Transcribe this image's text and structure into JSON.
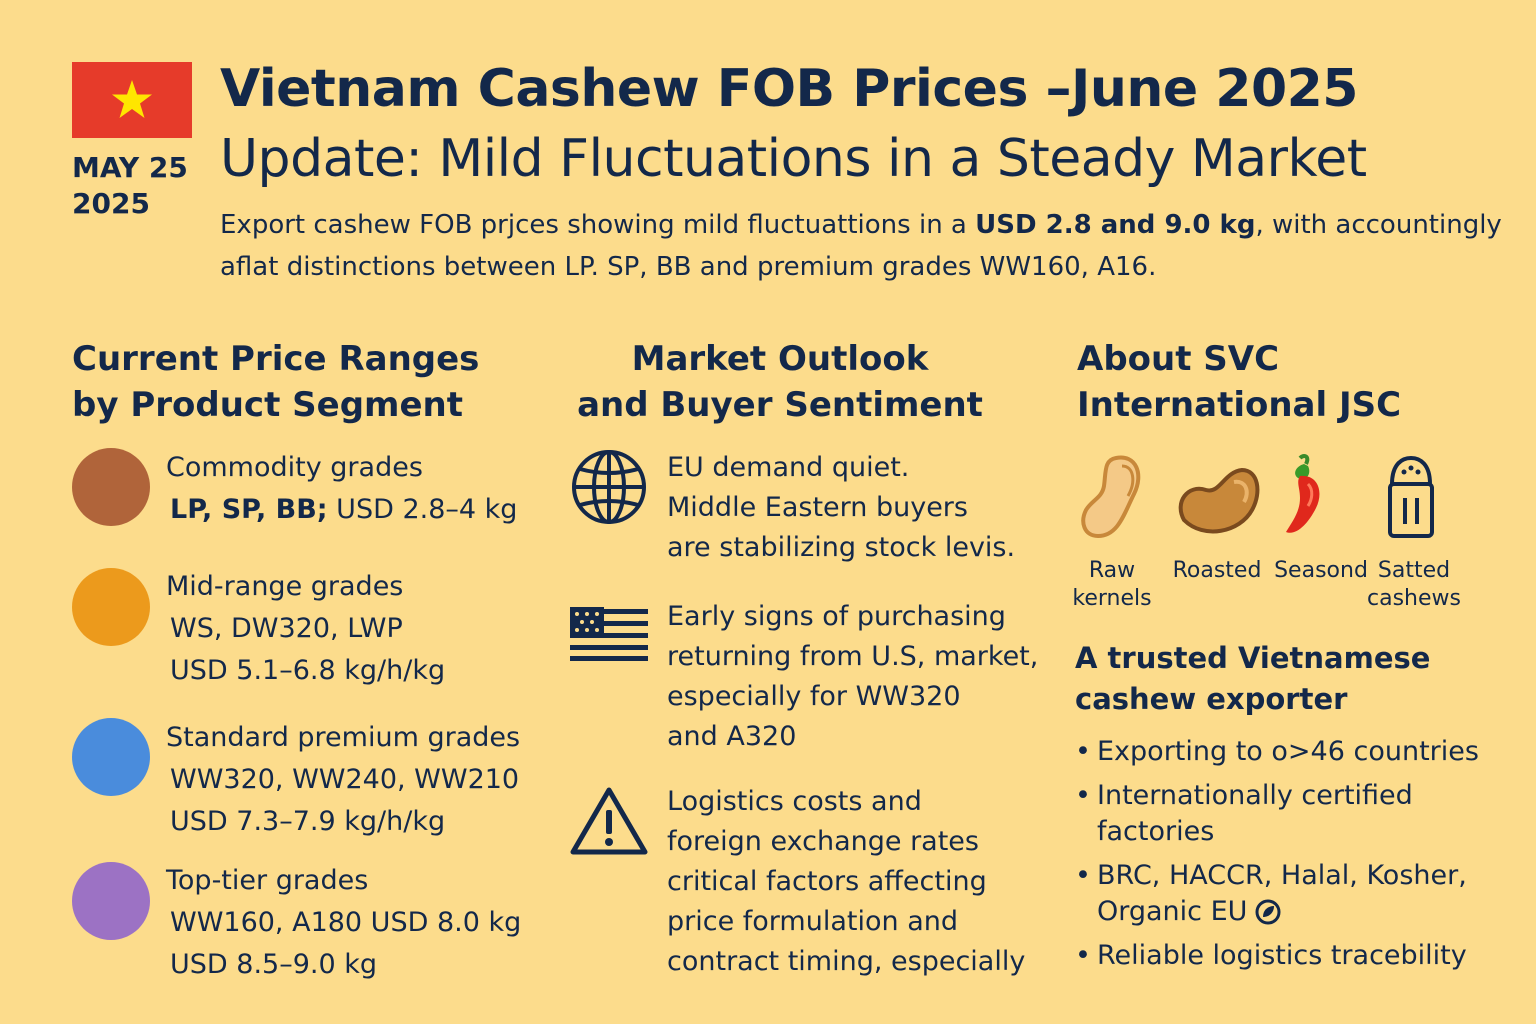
{
  "header": {
    "date_line1": "MAY 25",
    "date_line2": "2025",
    "title_line1": "Vietnam Cashew FOB Prices –June 2025",
    "title_line2": "Update: Mild Fluctuations in a Steady Market",
    "intro_part1": "Export cashew FOB prjces showing mild fluctuattions in a ",
    "intro_bold": "USD 2.8 and 9.0 kg",
    "intro_part2": ", with accountingly aflat distinctions between LP. SP, BB and premium grades WW160, A16."
  },
  "colors": {
    "background": "#fcdc8c",
    "text": "#13284a",
    "flag_red": "#e63b2a",
    "flag_star": "#ffe600",
    "commodity": "#b0643a",
    "mid_range": "#ec9a1c",
    "standard_premium": "#4a8cdc",
    "top_tier": "#9c72c4"
  },
  "price_section": {
    "heading_line1": "Current Price Ranges",
    "heading_line2": "by Product Segment",
    "segments": [
      {
        "name": "Commodity grades",
        "line2_bold": "LP, SP, BB;",
        "line2_rest": " USD 2.8–4 kg",
        "line3": ""
      },
      {
        "name": "Mid-range grades",
        "line2_bold": "",
        "line2_rest": "WS, DW320, LWP",
        "line3": "USD 5.1–6.8 kg/h/kg"
      },
      {
        "name": "Standard premium grades",
        "line2_bold": "",
        "line2_rest": "WW320, WW240, WW210",
        "line3": "USD 7.3–7.9 kg/h/kg"
      },
      {
        "name": "Top-tier grades",
        "line2_bold": "",
        "line2_rest": "WW160, A180  USD 8.0 kg",
        "line3": "USD 8.5–9.0 kg"
      }
    ]
  },
  "market_section": {
    "heading_line1": "Market Outlook",
    "heading_line2": "and Buyer Sentiment",
    "items": [
      {
        "icon": "globe-icon",
        "lines": [
          "EU demand quiet.",
          "Middle Eastern buyers",
          "are stabilizing stock levis."
        ]
      },
      {
        "icon": "us-flag-icon",
        "lines": [
          "Early signs of purchasing",
          "returning from U.S, market,",
          "especially for WW320",
          "and A320"
        ]
      },
      {
        "icon": "warning-icon",
        "lines": [
          "Logistics costs and",
          "foreign exchange rates",
          "critical factors affecting",
          "price formulation and",
          "contract timing, especially"
        ]
      }
    ]
  },
  "about_section": {
    "heading_line1": "About SVC",
    "heading_line2": "International JSC",
    "products": [
      {
        "icon": "raw-cashew-icon",
        "line1": "Raw",
        "line2": "kernels"
      },
      {
        "icon": "roasted-cashew-icon",
        "line1": "Roasted",
        "line2": ""
      },
      {
        "icon": "chili-pepper-icon",
        "line1": "Seasond",
        "line2": ""
      },
      {
        "icon": "salt-shaker-icon",
        "line1": "Satted",
        "line2": "cashews"
      }
    ],
    "tagline_line1": "A trusted  Vietnamese",
    "tagline_line2": "cashew exporter",
    "bullets": [
      {
        "lines": [
          "Exporting to o>46 countries"
        ]
      },
      {
        "lines": [
          "Internationally certified",
          "factories"
        ]
      },
      {
        "lines": [
          "BRC, HACCR, Halal, Kosher,",
          "Organic EU"
        ]
      },
      {
        "lines": [
          "Reliable logistics tracebility"
        ]
      }
    ]
  }
}
